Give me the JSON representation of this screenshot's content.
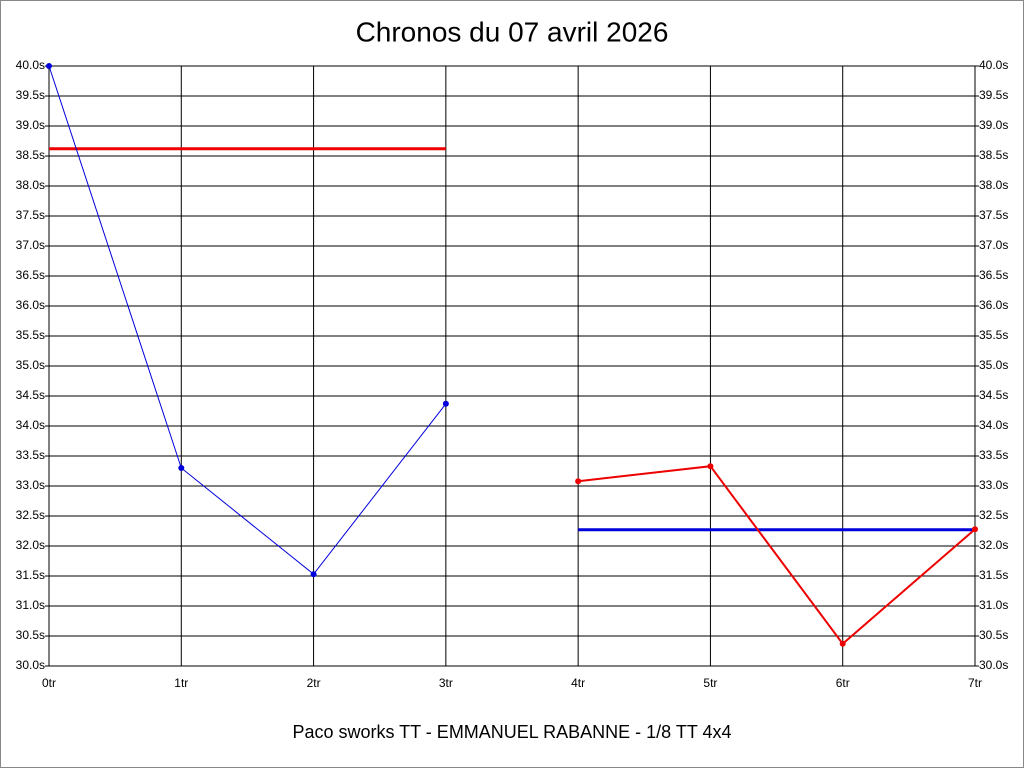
{
  "chart_data": {
    "type": "line",
    "title": "Chronos du 07 avril 2026",
    "x_label": "Paco sworks TT - EMMANUEL RABANNE - 1/8 TT 4x4",
    "categories": [
      "0tr",
      "1tr",
      "2tr",
      "3tr",
      "4tr",
      "5tr",
      "6tr",
      "7tr"
    ],
    "series": [
      {
        "color": "#0000dd",
        "line_width": 1,
        "values": [
          40.0,
          33.3,
          31.53,
          34.37,
          null,
          null,
          null,
          null
        ]
      },
      {
        "color": "#ee0000",
        "line_width": 2,
        "values": [
          null,
          null,
          null,
          null,
          33.08,
          33.33,
          30.37,
          32.28
        ]
      }
    ],
    "reference_lines": [
      {
        "color": "#ee0000",
        "value": 38.62,
        "x_start": "0tr",
        "x_end": "3tr"
      },
      {
        "color": "#0000dd",
        "value": 32.27,
        "x_start": "4tr",
        "x_end": "7tr"
      }
    ],
    "ylim": [
      30.0,
      40.0
    ],
    "yticks": [
      {
        "value": 30.0,
        "label": "30.0s"
      },
      {
        "value": 30.5,
        "label": "30.5s"
      },
      {
        "value": 31.0,
        "label": "31.0s"
      },
      {
        "value": 31.5,
        "label": "31.5s"
      },
      {
        "value": 32.0,
        "label": "32.0s"
      },
      {
        "value": 32.5,
        "label": "32.5s"
      },
      {
        "value": 33.0,
        "label": "33.0s"
      },
      {
        "value": 33.5,
        "label": "33.5s"
      },
      {
        "value": 34.0,
        "label": "34.0s"
      },
      {
        "value": 34.5,
        "label": "34.5s"
      },
      {
        "value": 35.0,
        "label": "35.0s"
      },
      {
        "value": 35.5,
        "label": "35.5s"
      },
      {
        "value": 36.0,
        "label": "36.0s"
      },
      {
        "value": 36.5,
        "label": "36.5s"
      },
      {
        "value": 37.0,
        "label": "37.0s"
      },
      {
        "value": 37.5,
        "label": "37.5s"
      },
      {
        "value": 38.0,
        "label": "38.0s"
      },
      {
        "value": 38.5,
        "label": "38.5s"
      },
      {
        "value": 39.0,
        "label": "39.0s"
      },
      {
        "value": 39.5,
        "label": "39.5s"
      },
      {
        "value": 40.0,
        "label": "40.0s"
      }
    ],
    "grid": true
  }
}
